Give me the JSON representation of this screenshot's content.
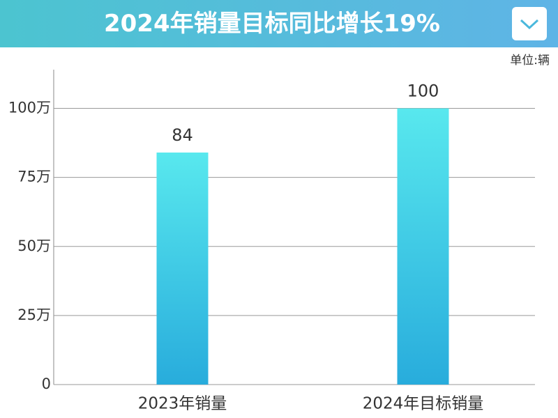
{
  "chart_data": {
    "type": "bar",
    "title": "2024年销量目标同比增长19%",
    "unit": "单位:辆",
    "categories": [
      "2023年销量",
      "2024年目标销量"
    ],
    "values": [
      84,
      100
    ],
    "color_top": "#58e8ee",
    "color_bottom": "#28acdc",
    "ylim": [
      0,
      114
    ],
    "yticks": [
      0,
      {
        "value": 25,
        "label": "25万"
      },
      {
        "value": 50,
        "label": "50万"
      },
      {
        "value": 75,
        "label": "75万"
      },
      {
        "value": 100,
        "label": "100万"
      }
    ],
    "grid": true
  }
}
